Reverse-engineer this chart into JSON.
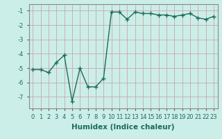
{
  "x": [
    0,
    1,
    2,
    3,
    4,
    5,
    6,
    7,
    8,
    9,
    10,
    11,
    12,
    13,
    14,
    15,
    16,
    17,
    18,
    19,
    20,
    21,
    22,
    23
  ],
  "y": [
    -5.1,
    -5.1,
    -5.3,
    -4.6,
    -4.1,
    -7.3,
    -5.0,
    -6.3,
    -6.3,
    -5.7,
    -1.1,
    -1.1,
    -1.6,
    -1.1,
    -1.2,
    -1.2,
    -1.3,
    -1.3,
    -1.4,
    -1.3,
    -1.2,
    -1.5,
    -1.6,
    -1.4
  ],
  "line_color": "#1a6b5a",
  "marker": "+",
  "marker_size": 4,
  "background_color": "#cceee8",
  "grid_color": "#c8a8a8",
  "xlabel": "Humidex (Indice chaleur)",
  "ylabel": "",
  "xlim": [
    -0.5,
    23.5
  ],
  "ylim": [
    -7.8,
    -0.55
  ],
  "yticks": [
    -7,
    -6,
    -5,
    -4,
    -3,
    -2,
    -1
  ],
  "xticks": [
    0,
    1,
    2,
    3,
    4,
    5,
    6,
    7,
    8,
    9,
    10,
    11,
    12,
    13,
    14,
    15,
    16,
    17,
    18,
    19,
    20,
    21,
    22,
    23
  ],
  "tick_fontsize": 6,
  "xlabel_fontsize": 7.5,
  "linewidth": 1.0
}
